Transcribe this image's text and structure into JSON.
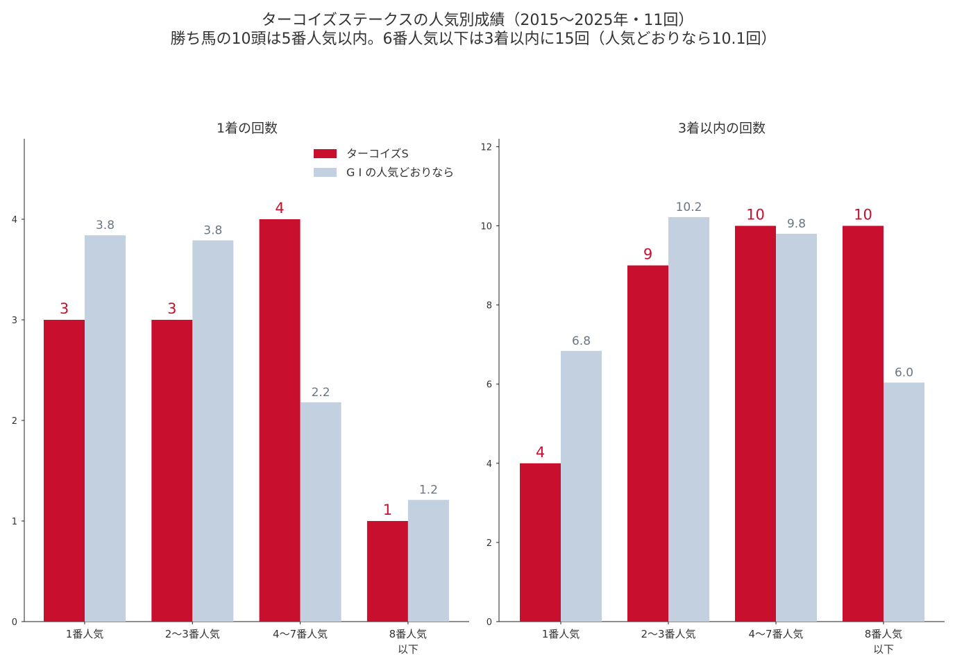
{
  "figure": {
    "title": "ターコイズステークスの人気別成績（2015〜2025年・11回）",
    "subtitle": "勝ち馬の10頭は5番人気以内。6番人気以下は3着以内に15回（人気どおりなら10.1回）"
  },
  "colors": {
    "series1": "#c8102e",
    "series2": "#c3d0e0",
    "series2_label": "#6b7684",
    "axis": "#222222",
    "text": "#333333"
  },
  "chart_data": [
    {
      "type": "bar",
      "title": "1着の回数",
      "categories": [
        [
          "1番人気"
        ],
        [
          "2〜3番人気"
        ],
        [
          "4〜7番人気"
        ],
        [
          "8番人気",
          "以下"
        ]
      ],
      "series": [
        {
          "name": "ターコイズS",
          "values": [
            3,
            3,
            4,
            1
          ],
          "labels": [
            "3",
            "3",
            "4",
            "1"
          ]
        },
        {
          "name": "G I の人気どおりなら",
          "values": [
            3.84,
            3.79,
            2.18,
            1.21
          ],
          "labels": [
            "3.8",
            "3.8",
            "2.2",
            "1.2"
          ]
        }
      ],
      "ylim": [
        0,
        4.8
      ],
      "yticks": [
        0,
        1,
        2,
        3,
        4
      ],
      "legend": "top-right",
      "grid": false
    },
    {
      "type": "bar",
      "title": "3着以内の回数",
      "categories": [
        [
          "1番人気"
        ],
        [
          "2〜3番人気"
        ],
        [
          "4〜7番人気"
        ],
        [
          "8番人気",
          "以下"
        ]
      ],
      "series": [
        {
          "name": "ターコイズS",
          "values": [
            4,
            9,
            10,
            10
          ],
          "labels": [
            "4",
            "9",
            "10",
            "10"
          ]
        },
        {
          "name": "G I の人気どおりなら",
          "values": [
            6.84,
            10.22,
            9.8,
            6.04
          ],
          "labels": [
            "6.8",
            "10.2",
            "9.8",
            "6.0"
          ]
        }
      ],
      "ylim": [
        0,
        12.2
      ],
      "yticks": [
        0,
        2,
        4,
        6,
        8,
        10,
        12
      ],
      "legend": "none",
      "grid": false
    }
  ]
}
